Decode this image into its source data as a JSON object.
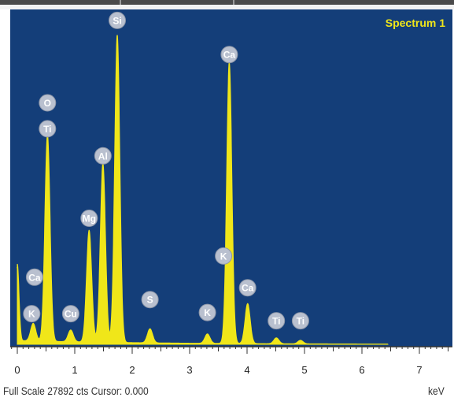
{
  "chart_data": {
    "type": "line",
    "title": "Spectrum 1",
    "xlabel": "keV",
    "ylabel": "",
    "xlim": [
      -0.1,
      7.5
    ],
    "ylim": [
      0,
      27892
    ],
    "x_ticks": [
      0,
      1,
      2,
      3,
      4,
      5,
      6,
      7
    ],
    "footer": "Full Scale 27892 cts Cursor: 0.000",
    "colors": {
      "background": "#143e79",
      "trace": "#f0e619",
      "label_marker": "#b9c0cf"
    },
    "series": [
      {
        "peaks": [
          {
            "x": 0.0,
            "y": 6500
          },
          {
            "x": 0.277,
            "y": 1500
          },
          {
            "x": 0.525,
            "y": 17600
          },
          {
            "x": 0.93,
            "y": 1000
          },
          {
            "x": 1.25,
            "y": 9500
          },
          {
            "x": 1.49,
            "y": 15200
          },
          {
            "x": 1.74,
            "y": 26100
          },
          {
            "x": 2.31,
            "y": 1200
          },
          {
            "x": 3.31,
            "y": 800
          },
          {
            "x": 3.69,
            "y": 23900
          },
          {
            "x": 4.01,
            "y": 3400
          },
          {
            "x": 4.51,
            "y": 500
          },
          {
            "x": 4.93,
            "y": 300
          }
        ]
      }
    ],
    "annotations": [
      {
        "label": "Si",
        "x": 1.74,
        "y": 27500
      },
      {
        "label": "O",
        "x": 0.525,
        "y": 20500
      },
      {
        "label": "Ti",
        "x": 0.525,
        "y": 18300
      },
      {
        "label": "Ca",
        "x": 3.69,
        "y": 24600
      },
      {
        "label": "Al",
        "x": 1.49,
        "y": 16000
      },
      {
        "label": "Mg",
        "x": 1.25,
        "y": 10700
      },
      {
        "label": "Ca",
        "x": 0.3,
        "y": 5700
      },
      {
        "label": "K",
        "x": 0.25,
        "y": 2600
      },
      {
        "label": "Cu",
        "x": 0.93,
        "y": 2600
      },
      {
        "label": "S",
        "x": 2.31,
        "y": 3800
      },
      {
        "label": "K",
        "x": 3.31,
        "y": 2700
      },
      {
        "label": "K",
        "x": 3.59,
        "y": 7500
      },
      {
        "label": "Ca",
        "x": 4.01,
        "y": 4800
      },
      {
        "label": "Ti",
        "x": 4.51,
        "y": 2000
      },
      {
        "label": "Ti",
        "x": 4.93,
        "y": 2000
      }
    ]
  }
}
